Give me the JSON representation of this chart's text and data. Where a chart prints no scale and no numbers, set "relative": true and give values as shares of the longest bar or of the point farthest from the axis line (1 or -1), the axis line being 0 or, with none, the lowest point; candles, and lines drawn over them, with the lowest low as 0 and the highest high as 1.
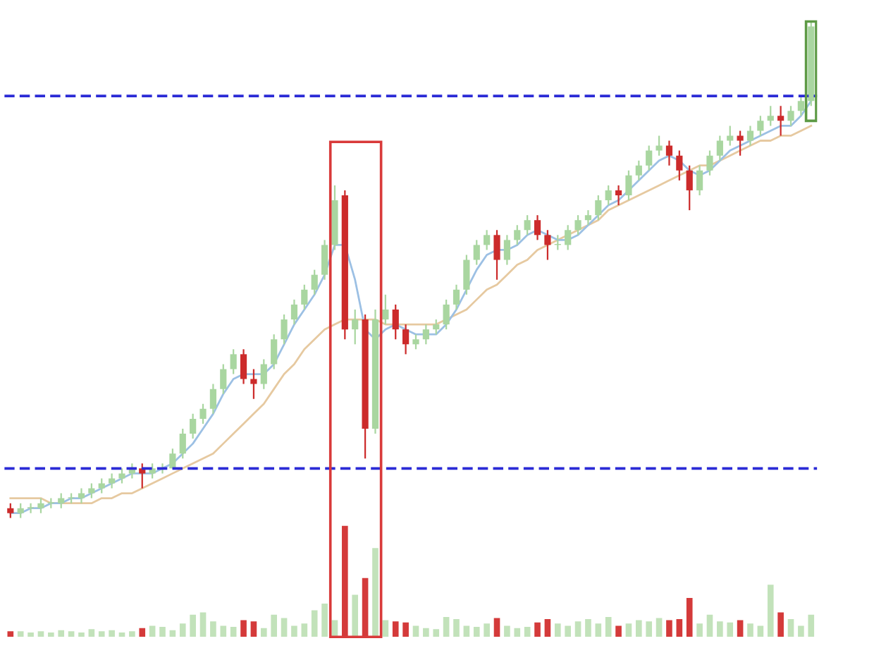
{
  "chart_data": [
    {
      "type": "candlestick",
      "relative": true,
      "categories": [
        null,
        null,
        null,
        null,
        null,
        null,
        null,
        null,
        null,
        null,
        null,
        null,
        null,
        null,
        null,
        null,
        null,
        null,
        null,
        null,
        null,
        null,
        null,
        null,
        null,
        null,
        null,
        null,
        null,
        null,
        null,
        null,
        null,
        null,
        null,
        null,
        null,
        null,
        null,
        null,
        null,
        null,
        null,
        null,
        null,
        null,
        null,
        null,
        null,
        null,
        null,
        null,
        null,
        null,
        null,
        null,
        null,
        null,
        null,
        null,
        null,
        null,
        null,
        null,
        null,
        null,
        null,
        null,
        null,
        null,
        null,
        null,
        null,
        null,
        null,
        null,
        null,
        null,
        null,
        null
      ],
      "ohlc": [
        [
          0.02,
          0.03,
          0,
          0.01
        ],
        [
          0.01,
          0.03,
          0.0,
          0.02
        ],
        [
          0.02,
          0.03,
          0.01,
          0.02
        ],
        [
          0.02,
          0.04,
          0.01,
          0.03
        ],
        [
          0.03,
          0.04,
          0.02,
          0.03
        ],
        [
          0.03,
          0.05,
          0.02,
          0.04
        ],
        [
          0.04,
          0.05,
          0.03,
          0.04
        ],
        [
          0.04,
          0.06,
          0.03,
          0.05
        ],
        [
          0.05,
          0.07,
          0.04,
          0.06
        ],
        [
          0.06,
          0.08,
          0.05,
          0.07
        ],
        [
          0.07,
          0.09,
          0.06,
          0.08
        ],
        [
          0.08,
          0.1,
          0.07,
          0.09
        ],
        [
          0.09,
          0.11,
          0.08,
          0.1
        ],
        [
          0.1,
          0.11,
          0.06,
          0.09
        ],
        [
          0.09,
          0.11,
          0.08,
          0.1
        ],
        [
          0.1,
          0.11,
          0.09,
          0.1
        ],
        [
          0.1,
          0.14,
          0.1,
          0.13
        ],
        [
          0.13,
          0.18,
          0.12,
          0.17
        ],
        [
          0.17,
          0.21,
          0.16,
          0.2
        ],
        [
          0.2,
          0.23,
          0.19,
          0.22
        ],
        [
          0.22,
          0.27,
          0.21,
          0.26
        ],
        [
          0.26,
          0.31,
          0.25,
          0.3
        ],
        [
          0.3,
          0.34,
          0.29,
          0.33
        ],
        [
          0.33,
          0.34,
          0.27,
          0.28
        ],
        [
          0.28,
          0.3,
          0.24,
          0.27
        ],
        [
          0.27,
          0.32,
          0.26,
          0.31
        ],
        [
          0.31,
          0.37,
          0.3,
          0.36
        ],
        [
          0.36,
          0.41,
          0.35,
          0.4
        ],
        [
          0.4,
          0.44,
          0.39,
          0.43
        ],
        [
          0.43,
          0.47,
          0.42,
          0.46
        ],
        [
          0.46,
          0.5,
          0.45,
          0.49
        ],
        [
          0.49,
          0.56,
          0.48,
          0.55
        ],
        [
          0.55,
          0.67,
          0.54,
          0.64
        ],
        [
          0.65,
          0.66,
          0.36,
          0.38
        ],
        [
          0.38,
          0.42,
          0.35,
          0.4
        ],
        [
          0.4,
          0.41,
          0.12,
          0.18
        ],
        [
          0.18,
          0.42,
          0.17,
          0.4
        ],
        [
          0.4,
          0.45,
          0.39,
          0.42
        ],
        [
          0.42,
          0.43,
          0.36,
          0.38
        ],
        [
          0.38,
          0.39,
          0.33,
          0.35
        ],
        [
          0.35,
          0.37,
          0.34,
          0.36
        ],
        [
          0.36,
          0.39,
          0.35,
          0.38
        ],
        [
          0.38,
          0.4,
          0.37,
          0.39
        ],
        [
          0.39,
          0.44,
          0.38,
          0.43
        ],
        [
          0.43,
          0.47,
          0.42,
          0.46
        ],
        [
          0.46,
          0.53,
          0.45,
          0.52
        ],
        [
          0.52,
          0.56,
          0.51,
          0.55
        ],
        [
          0.55,
          0.58,
          0.54,
          0.57
        ],
        [
          0.57,
          0.58,
          0.48,
          0.52
        ],
        [
          0.52,
          0.57,
          0.51,
          0.56
        ],
        [
          0.56,
          0.59,
          0.55,
          0.58
        ],
        [
          0.58,
          0.61,
          0.57,
          0.6
        ],
        [
          0.6,
          0.61,
          0.56,
          0.57
        ],
        [
          0.57,
          0.58,
          0.52,
          0.55
        ],
        [
          0.55,
          0.57,
          0.54,
          0.55
        ],
        [
          0.55,
          0.59,
          0.54,
          0.58
        ],
        [
          0.58,
          0.61,
          0.57,
          0.6
        ],
        [
          0.6,
          0.62,
          0.59,
          0.61
        ],
        [
          0.61,
          0.65,
          0.6,
          0.64
        ],
        [
          0.64,
          0.67,
          0.63,
          0.66
        ],
        [
          0.66,
          0.67,
          0.63,
          0.65
        ],
        [
          0.65,
          0.7,
          0.64,
          0.69
        ],
        [
          0.69,
          0.72,
          0.68,
          0.71
        ],
        [
          0.71,
          0.75,
          0.7,
          0.74
        ],
        [
          0.74,
          0.77,
          0.73,
          0.75
        ],
        [
          0.75,
          0.76,
          0.71,
          0.73
        ],
        [
          0.73,
          0.74,
          0.68,
          0.7
        ],
        [
          0.7,
          0.71,
          0.62,
          0.66
        ],
        [
          0.66,
          0.71,
          0.65,
          0.7
        ],
        [
          0.7,
          0.74,
          0.69,
          0.73
        ],
        [
          0.73,
          0.77,
          0.72,
          0.76
        ],
        [
          0.76,
          0.79,
          0.75,
          0.77
        ],
        [
          0.77,
          0.78,
          0.73,
          0.76
        ],
        [
          0.76,
          0.79,
          0.75,
          0.78
        ],
        [
          0.78,
          0.81,
          0.77,
          0.8
        ],
        [
          0.8,
          0.83,
          0.79,
          0.81
        ],
        [
          0.81,
          0.83,
          0.77,
          0.8
        ],
        [
          0.8,
          0.83,
          0.79,
          0.82
        ],
        [
          0.82,
          0.85,
          0.81,
          0.84
        ],
        [
          0.84,
          1.0,
          0.83,
          0.99
        ]
      ],
      "colors": [
        "#cc2b2b",
        "#a9d6a0",
        "#a9d6a0",
        "#a9d6a0",
        "#a9d6a0",
        "#a9d6a0",
        "#a9d6a0",
        "#a9d6a0",
        "#a9d6a0",
        "#a9d6a0",
        "#a9d6a0",
        "#a9d6a0",
        "#a9d6a0",
        "#cc2b2b",
        "#a9d6a0",
        "#a9d6a0",
        "#a9d6a0",
        "#a9d6a0",
        "#a9d6a0",
        "#a9d6a0",
        "#a9d6a0",
        "#a9d6a0",
        "#a9d6a0",
        "#cc2b2b",
        "#cc2b2b",
        "#a9d6a0",
        "#a9d6a0",
        "#a9d6a0",
        "#a9d6a0",
        "#a9d6a0",
        "#a9d6a0",
        "#a9d6a0",
        "#a9d6a0",
        "#cc2b2b",
        "#a9d6a0",
        "#cc2b2b",
        "#a9d6a0",
        "#a9d6a0",
        "#cc2b2b",
        "#cc2b2b",
        "#a9d6a0",
        "#a9d6a0",
        "#a9d6a0",
        "#a9d6a0",
        "#a9d6a0",
        "#a9d6a0",
        "#a9d6a0",
        "#a9d6a0",
        "#cc2b2b",
        "#a9d6a0",
        "#a9d6a0",
        "#a9d6a0",
        "#cc2b2b",
        "#cc2b2b",
        "#a9d6a0",
        "#a9d6a0",
        "#a9d6a0",
        "#a9d6a0",
        "#a9d6a0",
        "#a9d6a0",
        "#cc2b2b",
        "#a9d6a0",
        "#a9d6a0",
        "#a9d6a0",
        "#a9d6a0",
        "#cc2b2b",
        "#cc2b2b",
        "#cc2b2b",
        "#a9d6a0",
        "#a9d6a0",
        "#a9d6a0",
        "#a9d6a0",
        "#cc2b2b",
        "#a9d6a0",
        "#a9d6a0",
        "#a9d6a0",
        "#cc2b2b",
        "#a9d6a0",
        "#a9d6a0",
        "#a9d6a0"
      ],
      "series": [
        {
          "type": "line",
          "color": "#e6c9a0",
          "values": [
            0.04,
            0.04,
            0.04,
            0.04,
            0.03,
            0.03,
            0.03,
            0.03,
            0.03,
            0.04,
            0.04,
            0.05,
            0.05,
            0.06,
            0.07,
            0.08,
            0.09,
            0.1,
            0.11,
            0.12,
            0.13,
            0.15,
            0.17,
            0.19,
            0.21,
            0.23,
            0.26,
            0.29,
            0.31,
            0.34,
            0.36,
            0.38,
            0.39,
            0.4,
            0.4,
            0.4,
            0.4,
            0.39,
            0.39,
            0.39,
            0.39,
            0.39,
            0.39,
            0.4,
            0.41,
            0.42,
            0.44,
            0.46,
            0.47,
            0.49,
            0.51,
            0.52,
            0.54,
            0.55,
            0.56,
            0.57,
            0.58,
            0.59,
            0.6,
            0.62,
            0.63,
            0.64,
            0.65,
            0.66,
            0.67,
            0.68,
            0.69,
            0.7,
            0.71,
            0.71,
            0.72,
            0.73,
            0.74,
            0.75,
            0.76,
            0.76,
            0.77,
            0.77,
            0.78,
            0.79
          ]
        },
        {
          "type": "line",
          "color": "#9cc0e4",
          "values": [
            0.01,
            0.01,
            0.02,
            0.02,
            0.03,
            0.03,
            0.04,
            0.04,
            0.05,
            0.06,
            0.07,
            0.08,
            0.09,
            0.09,
            0.09,
            0.1,
            0.11,
            0.13,
            0.15,
            0.18,
            0.21,
            0.25,
            0.28,
            0.29,
            0.29,
            0.29,
            0.31,
            0.35,
            0.39,
            0.42,
            0.45,
            0.49,
            0.55,
            0.55,
            0.48,
            0.38,
            0.36,
            0.38,
            0.39,
            0.38,
            0.37,
            0.37,
            0.37,
            0.39,
            0.42,
            0.46,
            0.5,
            0.53,
            0.54,
            0.54,
            0.55,
            0.57,
            0.58,
            0.57,
            0.56,
            0.56,
            0.57,
            0.59,
            0.61,
            0.63,
            0.64,
            0.66,
            0.68,
            0.7,
            0.72,
            0.73,
            0.72,
            0.7,
            0.69,
            0.7,
            0.72,
            0.74,
            0.75,
            0.76,
            0.77,
            0.78,
            0.79,
            0.79,
            0.81,
            0.84
          ]
        }
      ],
      "ref_lines": [
        {
          "axis": "y",
          "value": 0.85,
          "color": "#2b2bd6",
          "line_style": "dashed"
        },
        {
          "axis": "y",
          "value": 0.1,
          "color": "#2b2bd6",
          "line_style": "dashed"
        }
      ],
      "grid": false
    },
    {
      "type": "bar",
      "relative": true,
      "categories": [
        null,
        null,
        null,
        null,
        null,
        null,
        null,
        null,
        null,
        null,
        null,
        null,
        null,
        null,
        null,
        null,
        null,
        null,
        null,
        null,
        null,
        null,
        null,
        null,
        null,
        null,
        null,
        null,
        null,
        null,
        null,
        null,
        null,
        null,
        null,
        null,
        null,
        null,
        null,
        null,
        null,
        null,
        null,
        null,
        null,
        null,
        null,
        null,
        null,
        null,
        null,
        null,
        null,
        null,
        null,
        null,
        null,
        null,
        null,
        null,
        null,
        null,
        null,
        null,
        null,
        null,
        null,
        null,
        null,
        null,
        null,
        null,
        null,
        null,
        null,
        null,
        null,
        null,
        null,
        null
      ],
      "values": [
        0.05,
        0.05,
        0.04,
        0.05,
        0.04,
        0.06,
        0.05,
        0.04,
        0.07,
        0.05,
        0.06,
        0.04,
        0.05,
        0.08,
        0.1,
        0.09,
        0.06,
        0.12,
        0.2,
        0.22,
        0.14,
        0.1,
        0.09,
        0.15,
        0.14,
        0.08,
        0.2,
        0.17,
        0.1,
        0.12,
        0.24,
        0.3,
        0.15,
        1.0,
        0.38,
        0.53,
        0.8,
        0.15,
        0.14,
        0.13,
        0.1,
        0.08,
        0.07,
        0.18,
        0.16,
        0.1,
        0.09,
        0.12,
        0.17,
        0.1,
        0.08,
        0.09,
        0.13,
        0.16,
        0.12,
        0.1,
        0.14,
        0.16,
        0.12,
        0.18,
        0.1,
        0.12,
        0.15,
        0.14,
        0.17,
        0.15,
        0.16,
        0.35,
        0.12,
        0.2,
        0.14,
        0.13,
        0.15,
        0.12,
        0.1,
        0.47,
        0.22,
        0.16,
        0.1,
        0.2
      ],
      "colors": [
        "#d43a3a",
        "#c2e2ba",
        "#c2e2ba",
        "#c2e2ba",
        "#c2e2ba",
        "#c2e2ba",
        "#c2e2ba",
        "#c2e2ba",
        "#c2e2ba",
        "#c2e2ba",
        "#c2e2ba",
        "#c2e2ba",
        "#c2e2ba",
        "#d43a3a",
        "#c2e2ba",
        "#c2e2ba",
        "#c2e2ba",
        "#c2e2ba",
        "#c2e2ba",
        "#c2e2ba",
        "#c2e2ba",
        "#c2e2ba",
        "#c2e2ba",
        "#d43a3a",
        "#d43a3a",
        "#c2e2ba",
        "#c2e2ba",
        "#c2e2ba",
        "#c2e2ba",
        "#c2e2ba",
        "#c2e2ba",
        "#c2e2ba",
        "#c2e2ba",
        "#d43a3a",
        "#c2e2ba",
        "#d43a3a",
        "#c2e2ba",
        "#c2e2ba",
        "#d43a3a",
        "#d43a3a",
        "#c2e2ba",
        "#c2e2ba",
        "#c2e2ba",
        "#c2e2ba",
        "#c2e2ba",
        "#c2e2ba",
        "#c2e2ba",
        "#c2e2ba",
        "#d43a3a",
        "#c2e2ba",
        "#c2e2ba",
        "#c2e2ba",
        "#d43a3a",
        "#d43a3a",
        "#c2e2ba",
        "#c2e2ba",
        "#c2e2ba",
        "#c2e2ba",
        "#c2e2ba",
        "#c2e2ba",
        "#d43a3a",
        "#c2e2ba",
        "#c2e2ba",
        "#c2e2ba",
        "#c2e2ba",
        "#d43a3a",
        "#d43a3a",
        "#d43a3a",
        "#c2e2ba",
        "#c2e2ba",
        "#c2e2ba",
        "#c2e2ba",
        "#d43a3a",
        "#c2e2ba",
        "#c2e2ba",
        "#c2e2ba",
        "#d43a3a",
        "#c2e2ba",
        "#c2e2ba",
        "#c2e2ba"
      ],
      "grid": false
    }
  ]
}
